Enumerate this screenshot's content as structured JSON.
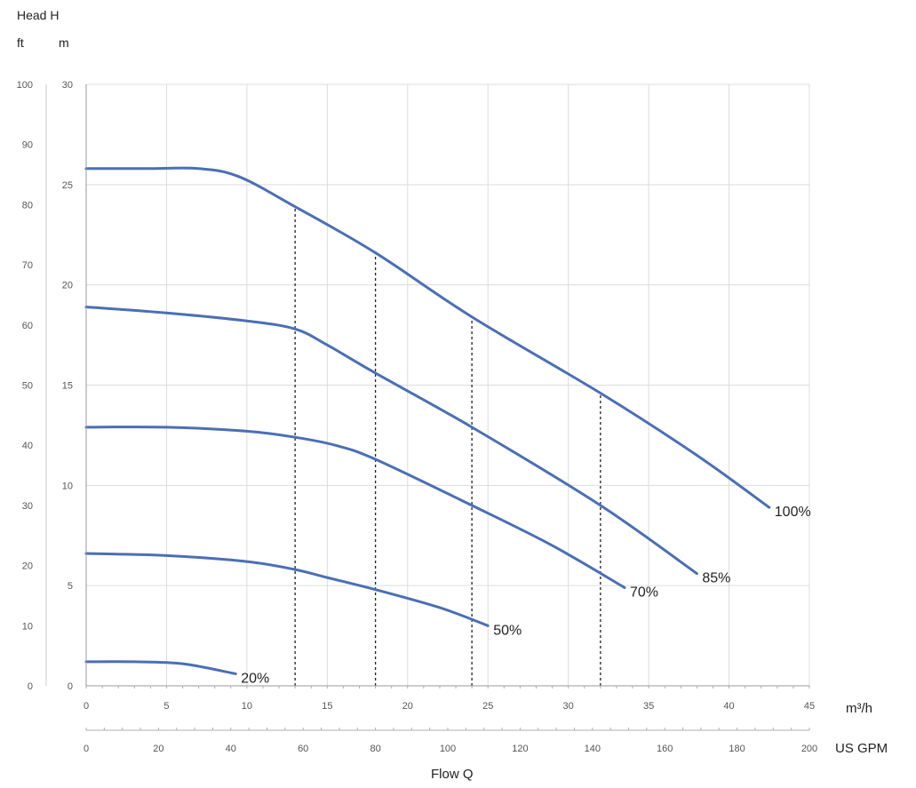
{
  "chart_data": {
    "type": "line",
    "title": "",
    "y_title": "Head  H",
    "y_unit_ft": "ft",
    "y_unit_m": "m",
    "x_title": "Flow  Q",
    "x_unit_primary": "m³/h",
    "x_unit_secondary": "US GPM",
    "xlim_m3h": [
      0,
      45
    ],
    "ylim_m": [
      0,
      30
    ],
    "ylim_ft": [
      0,
      100
    ],
    "xlim_gpm": [
      0,
      200
    ],
    "x_ticks_m3h": [
      "0",
      "5",
      "10",
      "15",
      "20",
      "25",
      "30",
      "35",
      "40",
      "45"
    ],
    "x_ticks_gpm": [
      "0",
      "20",
      "40",
      "60",
      "80",
      "100",
      "120",
      "140",
      "160",
      "180",
      "200"
    ],
    "y_ticks_m": [
      "0",
      "5",
      "10",
      "15",
      "20",
      "25",
      "30"
    ],
    "y_ticks_ft": [
      "0",
      "10",
      "20",
      "30",
      "40",
      "50",
      "60",
      "70",
      "80",
      "90",
      "100"
    ],
    "grid": true,
    "series": [
      {
        "name": "100%",
        "points": [
          [
            0,
            25.8
          ],
          [
            4,
            25.8
          ],
          [
            7,
            25.8
          ],
          [
            9.5,
            25.4
          ],
          [
            13,
            23.9
          ],
          [
            18,
            21.6
          ],
          [
            24,
            18.4
          ],
          [
            32,
            14.6
          ],
          [
            38,
            11.5
          ],
          [
            42.5,
            8.9
          ]
        ]
      },
      {
        "name": "85%",
        "points": [
          [
            0,
            18.9
          ],
          [
            5,
            18.6
          ],
          [
            10,
            18.2
          ],
          [
            13,
            17.8
          ],
          [
            15,
            17.0
          ],
          [
            18,
            15.6
          ],
          [
            24,
            12.9
          ],
          [
            32,
            9.0
          ],
          [
            38,
            5.6
          ]
        ]
      },
      {
        "name": "70%",
        "points": [
          [
            0,
            12.9
          ],
          [
            5,
            12.9
          ],
          [
            10,
            12.7
          ],
          [
            13,
            12.4
          ],
          [
            15.5,
            12.0
          ],
          [
            18,
            11.3
          ],
          [
            24,
            9.0
          ],
          [
            29,
            7.0
          ],
          [
            33.5,
            4.9
          ]
        ]
      },
      {
        "name": "50%",
        "points": [
          [
            0,
            6.6
          ],
          [
            5,
            6.5
          ],
          [
            10,
            6.2
          ],
          [
            13,
            5.8
          ],
          [
            15,
            5.4
          ],
          [
            18,
            4.8
          ],
          [
            22,
            3.9
          ],
          [
            25,
            3.0
          ]
        ]
      },
      {
        "name": "20%",
        "points": [
          [
            0,
            1.2
          ],
          [
            3,
            1.2
          ],
          [
            6,
            1.1
          ],
          [
            9.3,
            0.6
          ]
        ]
      }
    ],
    "reference_lines_m3h": [
      13,
      18,
      24,
      32
    ]
  }
}
